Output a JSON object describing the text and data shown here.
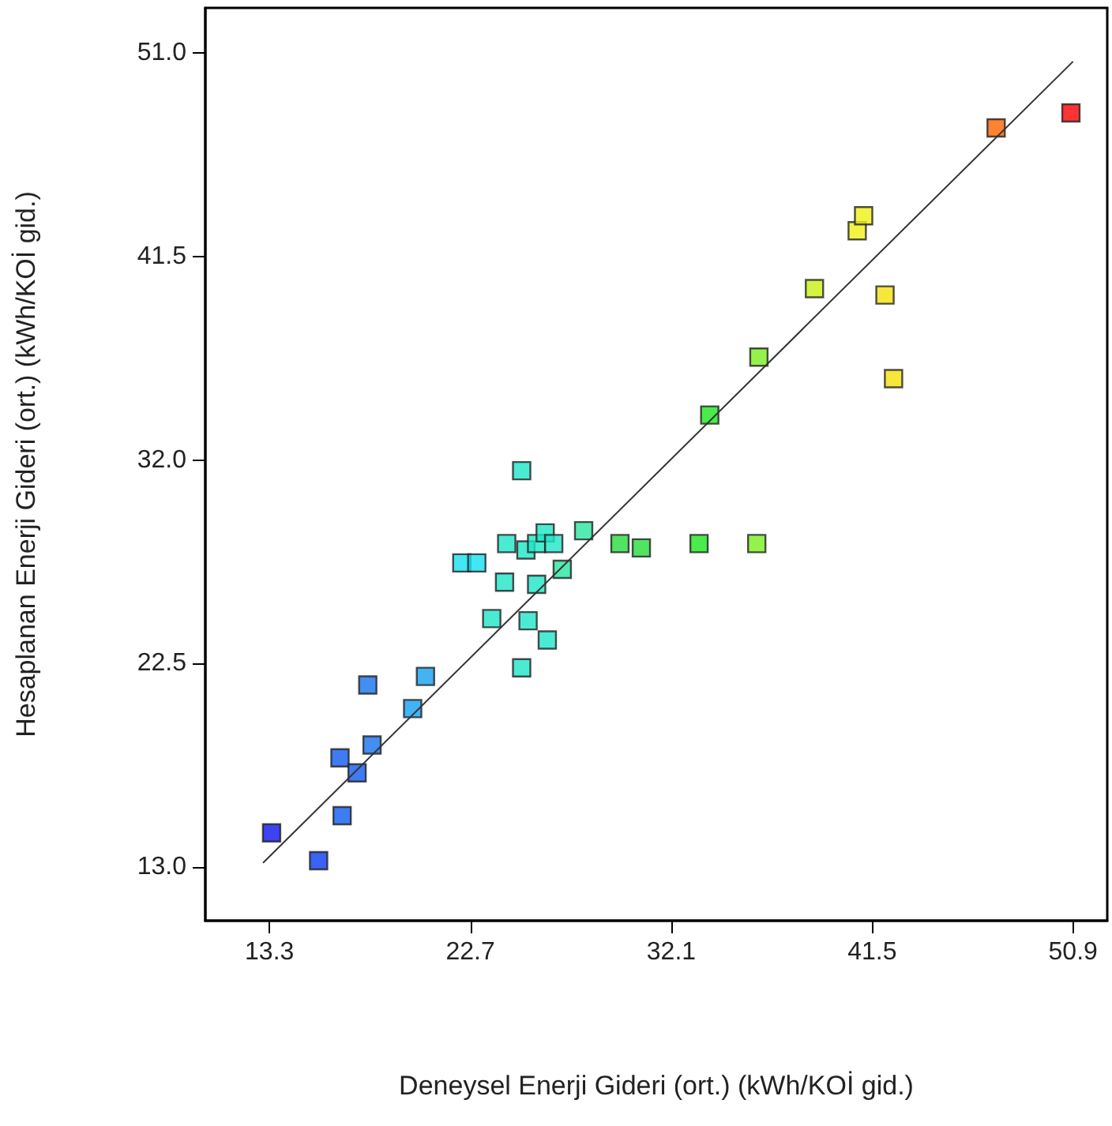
{
  "chart_data": {
    "type": "scatter",
    "xlabel": "Deneysel Enerji Gideri (ort.) (kWh/KOİ gid.)",
    "ylabel": "Hesaplanan Enerji Gideri (ort.) (kWh/KOİ gid.)",
    "xlim": [
      10.3,
      52.5
    ],
    "ylim": [
      10.5,
      53.1
    ],
    "xticks": [
      13.3,
      22.7,
      32.1,
      41.5,
      50.9
    ],
    "yticks": [
      {
        "value": 13,
        "label": "13.0"
      },
      22.5,
      {
        "value": 32,
        "label": "32.0"
      },
      41.5,
      {
        "value": 51,
        "label": "51.0"
      }
    ],
    "grid": false,
    "marker": "square",
    "series": [
      {
        "x": [
          13.4,
          15.6,
          16.7,
          16.6,
          17.4,
          18.1,
          17.9,
          20.0,
          20.6,
          22.3,
          23.0,
          23.7,
          24.3,
          24.4,
          25.1,
          25.3,
          25.4,
          25.8,
          25.8,
          26.2,
          26.3,
          26.6,
          27.0,
          28.0,
          29.7,
          30.7,
          25.1,
          33.4,
          36.1,
          33.9,
          36.2,
          38.8,
          40.8,
          41.1,
          42.1,
          42.5,
          47.3,
          50.8
        ],
        "values": [
          14.6,
          13.3,
          15.4,
          18.1,
          17.4,
          18.7,
          21.5,
          20.4,
          21.9,
          27.2,
          27.2,
          24.6,
          26.3,
          28.1,
          22.3,
          27.8,
          24.5,
          26.2,
          28.1,
          28.6,
          23.6,
          28.1,
          26.9,
          28.7,
          28.1,
          27.9,
          31.5,
          28.1,
          28.1,
          34.1,
          36.8,
          40.0,
          42.7,
          43.4,
          39.7,
          35.8,
          47.5,
          48.2
        ],
        "colors": [
          "#0a14f0",
          "#0a3cf0",
          "#0f5af0",
          "#0f5af0",
          "#0f5af0",
          "#1470f0",
          "#1470f0",
          "#14a0f0",
          "#14a0f0",
          "#14e0f0",
          "#14e0f0",
          "#1ee6c8",
          "#1ee6c8",
          "#1ee6c8",
          "#1ee6c8",
          "#1ee6c8",
          "#1ee6c8",
          "#1ee6c8",
          "#1ee6c8",
          "#1ee6c8",
          "#1ee6c8",
          "#1ee6c8",
          "#28e6a0",
          "#28e6a0",
          "#28dc3c",
          "#28dc3c",
          "#1ee6c8",
          "#1ee61e",
          "#78f01e",
          "#1ee61e",
          "#78f01e",
          "#c8f014",
          "#f0f014",
          "#f0f014",
          "#f5e10a",
          "#f5e10a",
          "#ff6400",
          "#ff0000"
        ]
      },
      {
        "type": "line",
        "x": [
          13.0,
          50.9
        ],
        "values": [
          13.2,
          50.6
        ],
        "color": "#333333",
        "marker": "none",
        "line_style": "solid"
      }
    ]
  }
}
